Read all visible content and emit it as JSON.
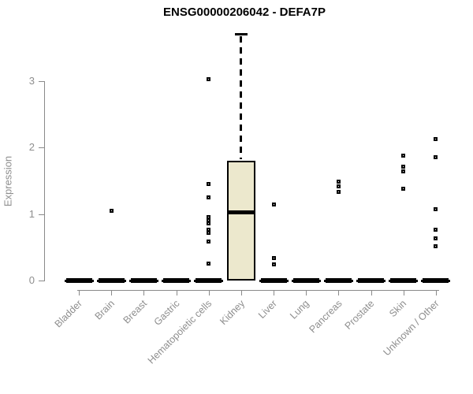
{
  "title": "ENSG00000206042 - DEFA7P",
  "colors": {
    "box_fill": "#ECE8CD",
    "box_border": "#000000",
    "median": "#000000",
    "axis": "#8a8a8a",
    "tick_label": "#8e8e8e",
    "title": "#000000",
    "outlier": "#000000",
    "zero_bar": "#000000",
    "background": "#ffffff"
  },
  "chart_data": {
    "type": "boxplot",
    "title": "ENSG00000206042 - DEFA7P",
    "xlabel": "",
    "ylabel": "Expression",
    "yticks": [
      0,
      1,
      2,
      3
    ],
    "ylim": [
      0,
      3.75
    ],
    "grid": false,
    "legend": null,
    "categories": [
      "Bladder",
      "Brain",
      "Breast",
      "Gastric",
      "Hematopoietic cells",
      "Kidney",
      "Liver",
      "Lung",
      "Pancreas",
      "Prostate",
      "Skin",
      "Unknown / Other"
    ],
    "boxes": [
      {
        "category": "Bladder",
        "q1": 0,
        "median": 0,
        "q3": 0,
        "whisker_low": 0,
        "whisker_high": 0,
        "outliers": []
      },
      {
        "category": "Brain",
        "q1": 0,
        "median": 0,
        "q3": 0,
        "whisker_low": 0,
        "whisker_high": 0,
        "outliers": [
          1.05
        ]
      },
      {
        "category": "Breast",
        "q1": 0,
        "median": 0,
        "q3": 0,
        "whisker_low": 0,
        "whisker_high": 0,
        "outliers": []
      },
      {
        "category": "Gastric",
        "q1": 0,
        "median": 0,
        "q3": 0,
        "whisker_low": 0,
        "whisker_high": 0,
        "outliers": []
      },
      {
        "category": "Hematopoietic cells",
        "q1": 0,
        "median": 0,
        "q3": 0,
        "whisker_low": 0,
        "whisker_high": 0,
        "outliers": [
          3.03,
          1.45,
          1.25,
          0.95,
          0.91,
          0.86,
          0.76,
          0.72,
          0.59,
          0.26
        ]
      },
      {
        "category": "Kidney",
        "q1": 0,
        "median": 1.02,
        "q3": 1.8,
        "whisker_low": 0,
        "whisker_high": 3.7,
        "outliers": []
      },
      {
        "category": "Liver",
        "q1": 0,
        "median": 0,
        "q3": 0,
        "whisker_low": 0,
        "whisker_high": 0,
        "outliers": [
          1.15,
          0.34,
          0.24
        ]
      },
      {
        "category": "Lung",
        "q1": 0,
        "median": 0,
        "q3": 0,
        "whisker_low": 0,
        "whisker_high": 0,
        "outliers": []
      },
      {
        "category": "Pancreas",
        "q1": 0,
        "median": 0,
        "q3": 0,
        "whisker_low": 0,
        "whisker_high": 0,
        "outliers": [
          1.49,
          1.42,
          1.33
        ]
      },
      {
        "category": "Prostate",
        "q1": 0,
        "median": 0,
        "q3": 0,
        "whisker_low": 0,
        "whisker_high": 0,
        "outliers": []
      },
      {
        "category": "Skin",
        "q1": 0,
        "median": 0,
        "q3": 0,
        "whisker_low": 0,
        "whisker_high": 0,
        "outliers": [
          1.88,
          1.71,
          1.64,
          1.38
        ]
      },
      {
        "category": "Unknown / Other",
        "q1": 0,
        "median": 0,
        "q3": 0,
        "whisker_low": 0,
        "whisker_high": 0,
        "outliers": [
          2.13,
          1.86,
          1.07,
          0.77,
          0.63,
          0.52
        ]
      }
    ]
  }
}
